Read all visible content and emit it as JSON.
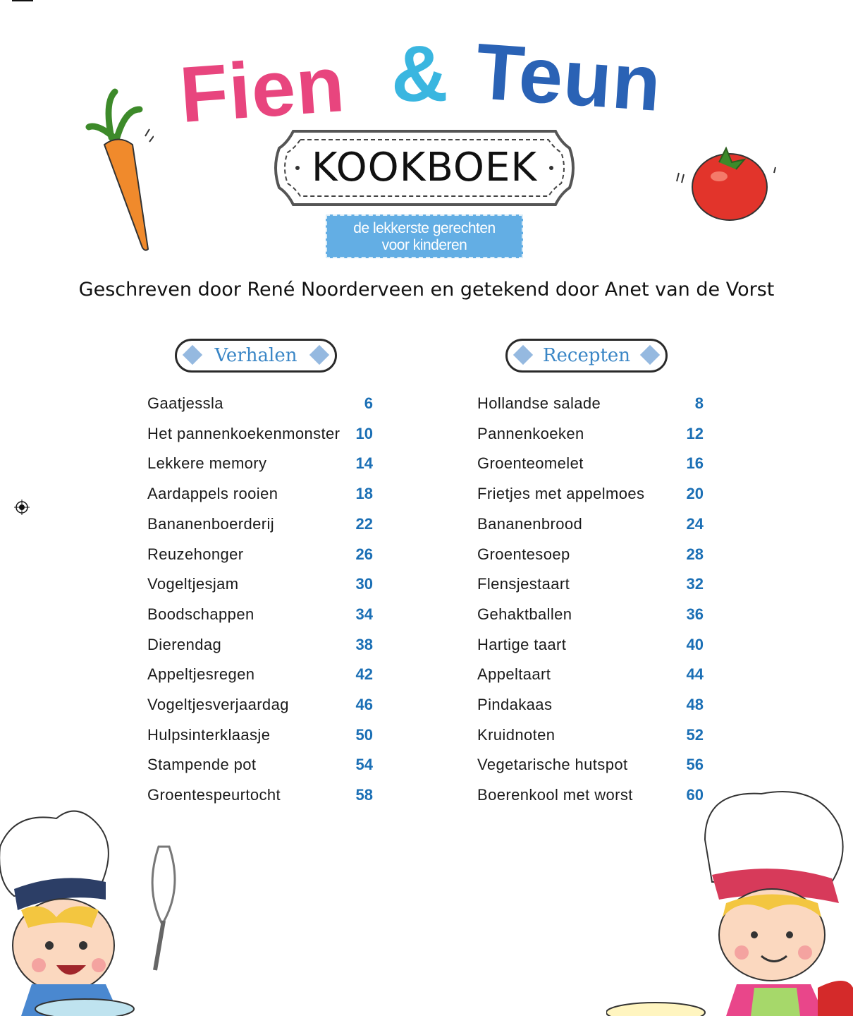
{
  "header": {
    "title_part1": "Fien",
    "title_ampersand": "&",
    "title_part2": "Teun",
    "sign_label": "KOOKBOEK",
    "tagline_line1": "de lekkerste gerechten",
    "tagline_line2": "voor kinderen",
    "byline": "Geschreven door René Noorderveen en getekend door Anet van de Vorst"
  },
  "colors": {
    "pink": "#e8457e",
    "cyan": "#3ab6e0",
    "blue": "#2a62b5",
    "page_number": "#1b6fb5"
  },
  "verhalen": {
    "heading": "Verhalen",
    "items": [
      {
        "title": "Gaatjessla",
        "page": "6"
      },
      {
        "title": "Het pannenkoekenmonster",
        "page": "10"
      },
      {
        "title": "Lekkere memory",
        "page": "14"
      },
      {
        "title": "Aardappels rooien",
        "page": "18"
      },
      {
        "title": "Bananenboerderij",
        "page": "22"
      },
      {
        "title": "Reuzehonger",
        "page": "26"
      },
      {
        "title": "Vogeltjesjam",
        "page": "30"
      },
      {
        "title": "Boodschappen",
        "page": "34"
      },
      {
        "title": "Dierendag",
        "page": "38"
      },
      {
        "title": "Appeltjesregen",
        "page": "42"
      },
      {
        "title": "Vogeltjesverjaardag",
        "page": "46"
      },
      {
        "title": "Hulpsinterklaasje",
        "page": "50"
      },
      {
        "title": "Stampende pot",
        "page": "54"
      },
      {
        "title": "Groentespeurtocht",
        "page": "58"
      }
    ]
  },
  "recepten": {
    "heading": "Recepten",
    "items": [
      {
        "title": "Hollandse salade",
        "page": "8"
      },
      {
        "title": "Pannenkoeken",
        "page": "12"
      },
      {
        "title": "Groenteomelet",
        "page": "16"
      },
      {
        "title": "Frietjes met appelmoes",
        "page": "20"
      },
      {
        "title": "Bananenbrood",
        "page": "24"
      },
      {
        "title": "Groentesoep",
        "page": "28"
      },
      {
        "title": "Flensjestaart",
        "page": "32"
      },
      {
        "title": "Gehaktballen",
        "page": "36"
      },
      {
        "title": "Hartige taart",
        "page": "40"
      },
      {
        "title": "Appeltaart",
        "page": "44"
      },
      {
        "title": "Pindakaas",
        "page": "48"
      },
      {
        "title": "Kruidnoten",
        "page": "52"
      },
      {
        "title": "Vegetarische hutspot",
        "page": "56"
      },
      {
        "title": "Boerenkool met worst",
        "page": "60"
      }
    ]
  },
  "illustrations": [
    "carrot-icon",
    "tomato-icon",
    "boy-chef-illustration",
    "girl-chef-illustration",
    "registration-mark-icon"
  ]
}
